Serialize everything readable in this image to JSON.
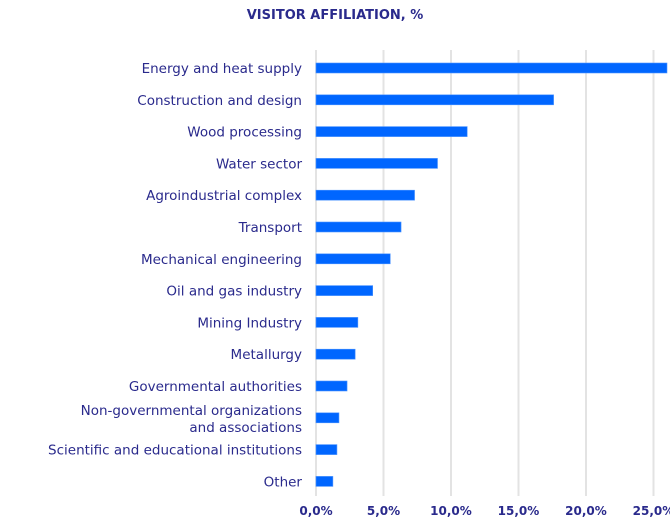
{
  "chart_data": {
    "type": "bar",
    "orientation": "horizontal",
    "title": "VISITOR AFFILIATION, %",
    "categories": [
      "Energy and heat supply",
      "Construction and design",
      "Wood processing",
      "Water sector",
      "Agroindustrial complex",
      "Transport",
      "Mechanical engineering",
      "Oil and gas industry",
      "Mining Industry",
      "Metallurgy",
      "Governmental authorities",
      "Non-governmental organizations\nand associations",
      "Scientific and educational institutions",
      "Other"
    ],
    "values": [
      26.0,
      17.6,
      11.2,
      9.0,
      7.3,
      6.3,
      5.5,
      4.2,
      3.1,
      2.9,
      2.3,
      1.7,
      1.55,
      1.25
    ],
    "xlim": [
      0,
      26
    ],
    "xticks": [
      0,
      5,
      10,
      15,
      20,
      25
    ],
    "xtick_labels": [
      "0,0%",
      "5,0%",
      "10,0%",
      "15,0%",
      "20,0%",
      "25,0%"
    ],
    "grid": "vertical",
    "colors": {
      "bar": "#0066ff",
      "text": "#2a2a8c",
      "grid": "#e3e3e3"
    }
  }
}
